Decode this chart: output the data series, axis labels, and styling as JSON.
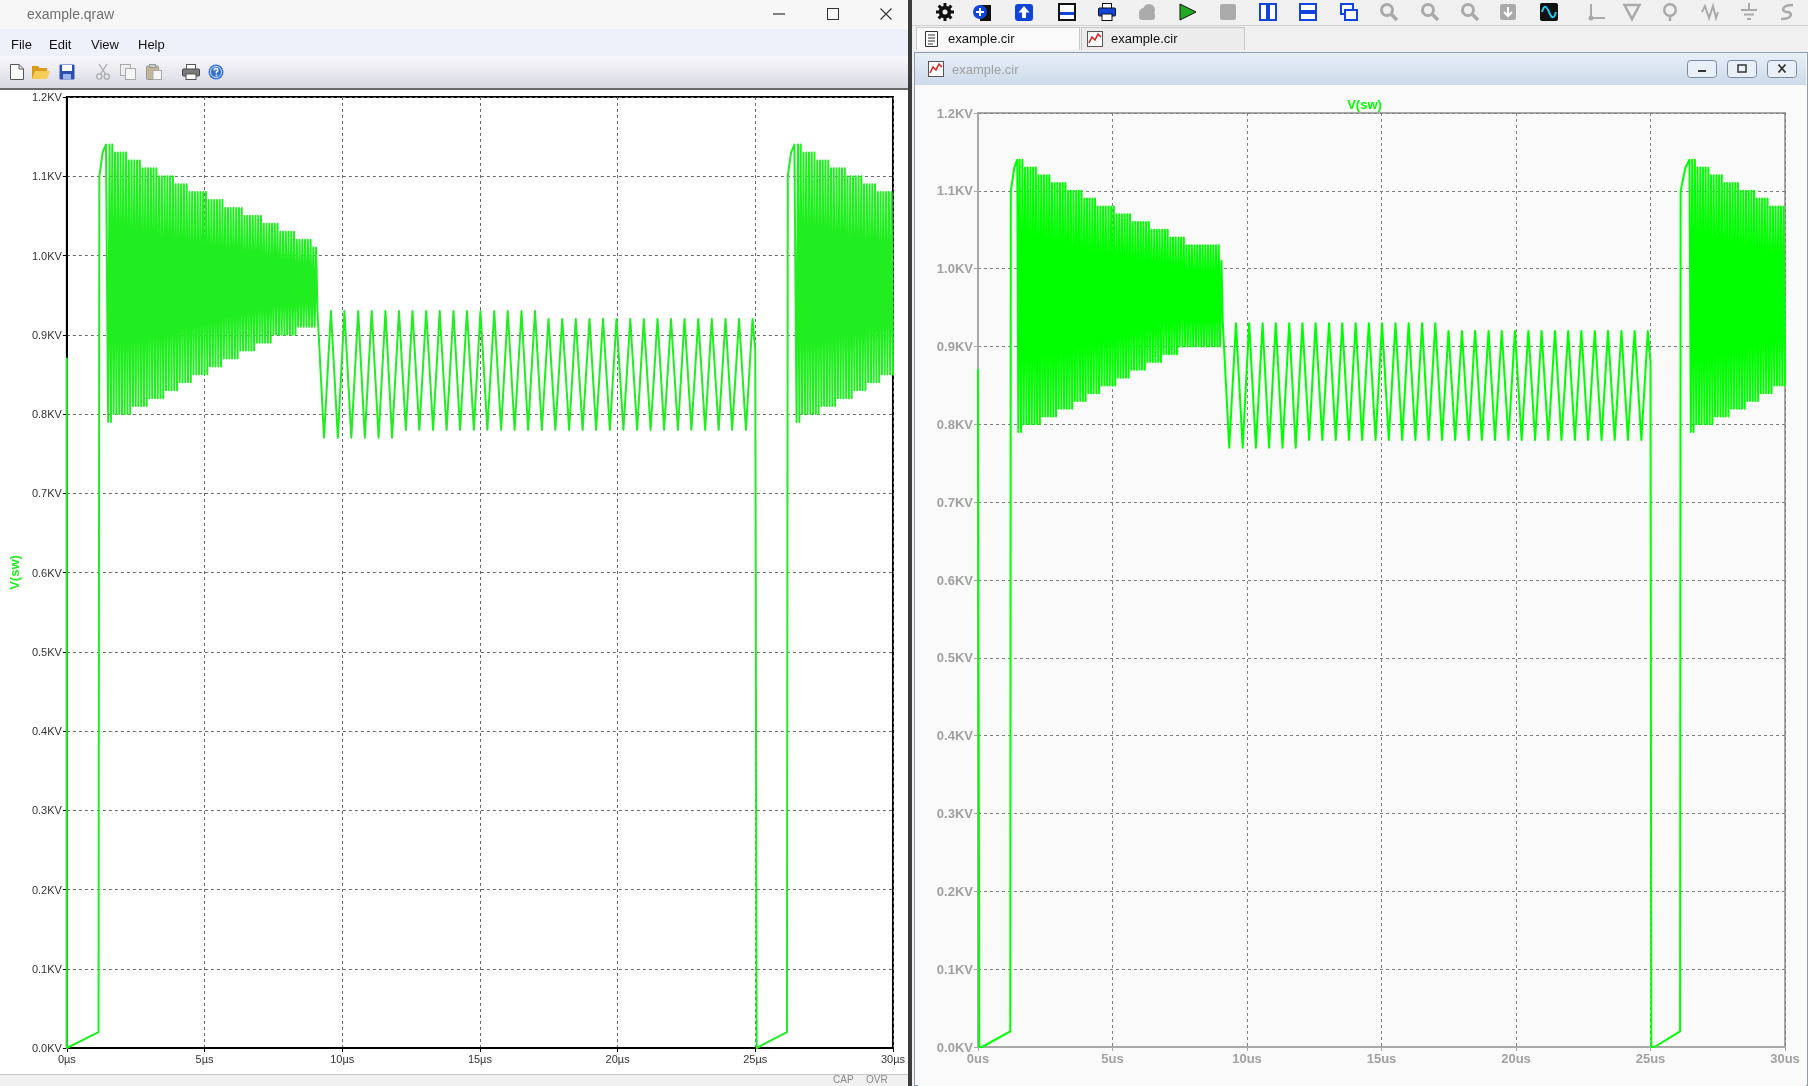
{
  "chart_data": [
    {
      "type": "line",
      "ylabel": "V(sw)",
      "annotations": [
        "example.qraw",
        "File",
        "Edit",
        "View",
        "Help",
        "CAP",
        "OVR"
      ],
      "x": [
        0,
        0,
        1.15,
        1.18,
        1.3,
        1.42,
        1.5,
        1.55,
        1.6,
        1.65,
        1.7,
        1.75,
        1.8,
        1.85,
        1.9,
        1.95,
        2,
        2.05,
        2.1,
        2.15,
        2.2,
        2.25,
        2.3,
        2.35,
        2.4,
        2.45,
        2.5,
        2.55,
        2.6,
        2.65,
        2.7,
        2.75,
        2.8,
        2.85,
        2.9,
        2.95,
        3,
        3.05,
        3.1,
        3.15,
        3.2,
        3.25,
        3.3,
        3.35,
        3.4,
        3.45,
        3.5,
        3.55,
        3.6,
        3.65,
        3.7,
        3.75,
        3.8,
        3.85,
        3.9,
        3.95,
        4,
        4.05,
        4.1,
        4.15,
        4.2,
        4.25,
        4.3,
        4.35,
        4.4,
        4.45,
        4.5,
        4.55,
        4.6,
        4.65,
        4.7,
        4.75,
        4.8,
        4.85,
        4.9,
        4.95,
        5,
        5.05,
        5.1,
        5.15,
        5.2,
        5.25,
        5.3,
        5.35,
        5.4,
        5.45,
        5.5,
        5.55,
        5.6,
        5.65,
        5.7,
        5.75,
        5.8,
        5.85,
        5.9,
        5.95,
        6,
        6.05,
        6.1,
        6.15,
        6.2,
        6.25,
        6.3,
        6.35,
        6.4,
        6.45,
        6.5,
        6.55,
        6.6,
        6.65,
        6.7,
        6.75,
        6.8,
        6.85,
        6.9,
        6.95,
        7,
        7.05,
        7.1,
        7.15,
        7.2,
        7.25,
        7.3,
        7.35,
        7.4,
        7.45,
        7.5,
        7.55,
        7.6,
        7.65,
        7.7,
        7.75,
        7.8,
        7.85,
        7.9,
        7.95,
        8,
        8.05,
        8.1,
        8.15,
        8.2,
        8.25,
        8.3,
        8.35,
        8.4,
        8.45,
        8.5,
        8.55,
        8.6,
        8.65,
        8.7,
        8.75,
        8.8,
        8.85,
        8.9,
        8.95,
        9,
        9.05,
        9.1,
        9.34,
        9.59,
        9.84,
        10.08,
        10.33,
        10.58,
        10.82,
        11.07,
        11.32,
        11.57,
        11.81,
        12.06,
        12.31,
        12.55,
        12.8,
        13.05,
        13.3,
        13.54,
        13.79,
        14.04,
        14.28,
        14.53,
        14.78,
        15.02,
        15.27,
        15.52,
        15.77,
        16.01,
        16.26,
        16.51,
        16.75,
        17,
        17.25,
        17.49,
        17.74,
        17.99,
        18.24,
        18.48,
        18.73,
        18.98,
        19.22,
        19.47,
        19.72,
        19.96,
        20.21,
        20.46,
        20.71,
        20.95,
        21.2,
        21.45,
        21.69,
        21.94,
        22.19,
        22.43,
        22.68,
        22.93,
        23.18,
        23.42,
        23.67,
        23.92,
        24.16,
        24.41,
        24.66,
        24.9,
        25,
        25.05,
        26.15,
        26.18,
        26.3,
        26.42,
        26.5,
        26.55,
        26.6,
        26.65,
        26.7,
        26.75,
        26.8,
        26.85,
        26.9,
        26.95,
        27,
        27.05,
        27.1,
        27.15,
        27.2,
        27.25,
        27.3,
        27.35,
        27.4,
        27.45,
        27.5,
        27.55,
        27.6,
        27.65,
        27.7,
        27.75,
        27.8,
        27.85,
        27.9,
        27.95,
        28,
        28.05,
        28.1,
        28.15,
        28.2,
        28.25,
        28.3,
        28.35,
        28.4,
        28.45,
        28.5,
        28.55,
        28.6,
        28.65,
        28.7,
        28.75,
        28.8,
        28.85,
        28.9,
        28.95,
        29,
        29.05,
        29.1,
        29.15,
        29.2,
        29.25,
        29.3,
        29.35,
        29.4,
        29.45,
        29.5,
        29.55,
        29.6,
        29.65,
        29.7,
        29.75,
        29.8,
        29.85,
        29.9,
        29.95,
        30
      ],
      "series": [
        {
          "color": "#20ee20",
          "values": [
            0.87,
            0,
            0.02,
            1.1,
            1.13,
            1.14,
            0.79,
            1.14,
            0.79,
            1.14,
            0.8,
            1.13,
            0.8,
            1.13,
            0.8,
            1.13,
            0.8,
            1.13,
            0.8,
            1.13,
            0.8,
            1.12,
            0.8,
            1.12,
            0.81,
            1.12,
            0.81,
            1.12,
            0.81,
            1.12,
            0.81,
            1.11,
            0.81,
            1.11,
            0.81,
            1.11,
            0.82,
            1.11,
            0.82,
            1.11,
            0.82,
            1.11,
            0.82,
            1.1,
            0.82,
            1.1,
            0.82,
            1.1,
            0.83,
            1.1,
            0.83,
            1.1,
            0.83,
            1.1,
            0.83,
            1.09,
            0.83,
            1.09,
            0.84,
            1.09,
            0.84,
            1.09,
            0.84,
            1.09,
            0.84,
            1.08,
            0.84,
            1.08,
            0.85,
            1.08,
            0.85,
            1.08,
            0.85,
            1.08,
            0.85,
            1.08,
            0.85,
            1.08,
            0.85,
            1.07,
            0.86,
            1.07,
            0.86,
            1.07,
            0.86,
            1.07,
            0.86,
            1.07,
            0.86,
            1.07,
            0.87,
            1.06,
            0.87,
            1.06,
            0.87,
            1.06,
            0.87,
            1.06,
            0.87,
            1.06,
            0.87,
            1.06,
            0.88,
            1.06,
            0.88,
            1.05,
            0.88,
            1.05,
            0.88,
            1.05,
            0.88,
            1.05,
            0.88,
            1.05,
            0.89,
            1.05,
            0.89,
            1.05,
            0.89,
            1.04,
            0.89,
            1.04,
            0.89,
            1.04,
            0.89,
            1.04,
            0.9,
            1.04,
            0.9,
            1.04,
            0.9,
            1.03,
            0.9,
            1.03,
            0.9,
            1.03,
            0.9,
            1.03,
            0.9,
            1.03,
            0.9,
            1.03,
            0.9,
            1.02,
            0.91,
            1.02,
            0.91,
            1.02,
            0.91,
            1.02,
            0.91,
            1.02,
            0.91,
            1.02,
            0.91,
            1.01,
            0.91,
            1.01,
            0.93,
            0.77,
            0.93,
            0.77,
            0.93,
            0.77,
            0.93,
            0.77,
            0.93,
            0.77,
            0.93,
            0.77,
            0.93,
            0.78,
            0.93,
            0.78,
            0.93,
            0.78,
            0.93,
            0.78,
            0.93,
            0.78,
            0.93,
            0.78,
            0.93,
            0.78,
            0.93,
            0.78,
            0.93,
            0.78,
            0.93,
            0.78,
            0.93,
            0.78,
            0.92,
            0.78,
            0.92,
            0.78,
            0.92,
            0.78,
            0.92,
            0.78,
            0.92,
            0.78,
            0.92,
            0.78,
            0.92,
            0.78,
            0.92,
            0.78,
            0.92,
            0.78,
            0.92,
            0.78,
            0.92,
            0.78,
            0.92,
            0.78,
            0.92,
            0.78,
            0.92,
            0.78,
            0.92,
            0.78,
            0.92,
            0.88,
            0,
            0.02,
            1.1,
            1.13,
            1.14,
            0.79,
            1.14,
            0.79,
            1.14,
            0.8,
            1.13,
            0.8,
            1.13,
            0.8,
            1.13,
            0.8,
            1.13,
            0.8,
            1.13,
            0.8,
            1.12,
            0.8,
            1.12,
            0.81,
            1.12,
            0.81,
            1.12,
            0.81,
            1.12,
            0.81,
            1.11,
            0.81,
            1.11,
            0.81,
            1.11,
            0.82,
            1.11,
            0.82,
            1.11,
            0.82,
            1.11,
            0.82,
            1.1,
            0.82,
            1.1,
            0.82,
            1.1,
            0.83,
            1.1,
            0.83,
            1.1,
            0.83,
            1.1,
            0.83,
            1.09,
            0.83,
            1.09,
            0.84,
            1.09,
            0.84,
            1.09,
            0.84,
            1.09,
            0.84,
            1.08,
            0.84,
            1.08,
            0.85,
            1.08,
            0.85,
            1.08,
            0.85,
            1.08,
            0.85,
            1.08,
            0.85
          ]
        }
      ],
      "xlim": [
        0,
        30
      ],
      "xticks": [
        {
          "value": 0,
          "label": "0µs"
        },
        {
          "value": 5,
          "label": "5µs"
        },
        {
          "value": 10,
          "label": "10µs"
        },
        {
          "value": 15,
          "label": "15µs"
        },
        {
          "value": 20,
          "label": "20µs"
        },
        {
          "value": 25,
          "label": "25µs"
        },
        {
          "value": 30,
          "label": "30µs"
        }
      ],
      "ylim": [
        0,
        1.2
      ],
      "yticks": [
        {
          "value": 0,
          "label": "0.0KV"
        },
        {
          "value": 0.1,
          "label": "0.1KV"
        },
        {
          "value": 0.2,
          "label": "0.2KV"
        },
        {
          "value": 0.3,
          "label": "0.3KV"
        },
        {
          "value": 0.4,
          "label": "0.4KV"
        },
        {
          "value": 0.5,
          "label": "0.5KV"
        },
        {
          "value": 0.6,
          "label": "0.6KV"
        },
        {
          "value": 0.7,
          "label": "0.7KV"
        },
        {
          "value": 0.8,
          "label": "0.8KV"
        },
        {
          "value": 0.9,
          "label": "0.9KV"
        },
        {
          "value": 1,
          "label": "1.0KV"
        },
        {
          "value": 1.1,
          "label": "1.1KV"
        },
        {
          "value": 1.2,
          "label": "1.2KV"
        }
      ],
      "grid": true,
      "marker": "none"
    },
    {
      "type": "line",
      "annotations": [
        "example.cir",
        "example.cir",
        "example.cir"
      ],
      "x": [
        0,
        0.05,
        0.15,
        1.2,
        1.22,
        1.35,
        1.46,
        1.5,
        1.55,
        1.6,
        1.65,
        1.7,
        1.75,
        1.8,
        1.85,
        1.9,
        1.95,
        2,
        2.05,
        2.1,
        2.15,
        2.2,
        2.25,
        2.3,
        2.35,
        2.4,
        2.45,
        2.5,
        2.55,
        2.6,
        2.65,
        2.7,
        2.75,
        2.8,
        2.85,
        2.9,
        2.95,
        3,
        3.05,
        3.1,
        3.15,
        3.2,
        3.25,
        3.3,
        3.35,
        3.4,
        3.45,
        3.5,
        3.55,
        3.6,
        3.65,
        3.7,
        3.75,
        3.8,
        3.85,
        3.9,
        3.95,
        4,
        4.05,
        4.1,
        4.15,
        4.2,
        4.25,
        4.3,
        4.35,
        4.4,
        4.45,
        4.5,
        4.55,
        4.6,
        4.65,
        4.7,
        4.75,
        4.8,
        4.85,
        4.9,
        4.95,
        5,
        5.05,
        5.1,
        5.15,
        5.2,
        5.25,
        5.3,
        5.35,
        5.4,
        5.45,
        5.5,
        5.55,
        5.6,
        5.65,
        5.7,
        5.75,
        5.8,
        5.85,
        5.9,
        5.95,
        6,
        6.05,
        6.1,
        6.15,
        6.2,
        6.25,
        6.3,
        6.35,
        6.4,
        6.45,
        6.5,
        6.55,
        6.6,
        6.65,
        6.7,
        6.75,
        6.8,
        6.85,
        6.9,
        6.95,
        7,
        7.05,
        7.1,
        7.15,
        7.2,
        7.25,
        7.3,
        7.35,
        7.4,
        7.45,
        7.5,
        7.55,
        7.6,
        7.65,
        7.7,
        7.75,
        7.8,
        7.85,
        7.9,
        7.95,
        8,
        8.05,
        8.1,
        8.15,
        8.2,
        8.25,
        8.3,
        8.35,
        8.4,
        8.45,
        8.5,
        8.55,
        8.6,
        8.65,
        8.7,
        8.75,
        8.8,
        8.85,
        8.9,
        8.95,
        9,
        9.05,
        9.1,
        9.34,
        9.59,
        9.84,
        10.08,
        10.33,
        10.58,
        10.82,
        11.07,
        11.32,
        11.57,
        11.81,
        12.06,
        12.31,
        12.55,
        12.8,
        13.05,
        13.3,
        13.54,
        13.79,
        14.04,
        14.28,
        14.53,
        14.78,
        15.02,
        15.27,
        15.52,
        15.77,
        16.01,
        16.26,
        16.51,
        16.75,
        17,
        17.25,
        17.49,
        17.74,
        17.99,
        18.24,
        18.48,
        18.73,
        18.98,
        19.22,
        19.47,
        19.72,
        19.96,
        20.21,
        20.46,
        20.71,
        20.95,
        21.2,
        21.45,
        21.69,
        21.94,
        22.19,
        22.43,
        22.68,
        22.93,
        23.18,
        23.42,
        23.67,
        23.92,
        24.16,
        24.41,
        24.66,
        24.9,
        25,
        25.03,
        25.15,
        26.1,
        26.12,
        26.3,
        26.45,
        26.5,
        26.55,
        26.6,
        26.65,
        26.7,
        26.75,
        26.8,
        26.85,
        26.9,
        26.95,
        27,
        27.05,
        27.1,
        27.15,
        27.2,
        27.25,
        27.3,
        27.35,
        27.4,
        27.45,
        27.5,
        27.55,
        27.6,
        27.65,
        27.7,
        27.75,
        27.8,
        27.85,
        27.9,
        27.95,
        28,
        28.05,
        28.1,
        28.15,
        28.2,
        28.25,
        28.3,
        28.35,
        28.4,
        28.45,
        28.5,
        28.55,
        28.6,
        28.65,
        28.7,
        28.75,
        28.8,
        28.85,
        28.9,
        28.95,
        29,
        29.05,
        29.1,
        29.15,
        29.2,
        29.25,
        29.3,
        29.35,
        29.4,
        29.45,
        29.5,
        29.55,
        29.6,
        29.65,
        29.7,
        29.75,
        29.8,
        29.85,
        29.9,
        29.95,
        30
      ],
      "series": [
        {
          "name": "V(sw)",
          "color": "#00ff00",
          "values": [
            0.87,
            0,
            0,
            0.02,
            1.1,
            1.13,
            1.14,
            0.79,
            1.14,
            0.79,
            1.14,
            0.8,
            1.13,
            0.8,
            1.13,
            0.8,
            1.13,
            0.8,
            1.13,
            0.8,
            1.13,
            0.8,
            1.12,
            0.8,
            1.12,
            0.81,
            1.12,
            0.81,
            1.12,
            0.81,
            1.12,
            0.81,
            1.11,
            0.81,
            1.11,
            0.81,
            1.11,
            0.82,
            1.11,
            0.82,
            1.11,
            0.82,
            1.11,
            0.82,
            1.1,
            0.82,
            1.1,
            0.82,
            1.1,
            0.83,
            1.1,
            0.83,
            1.1,
            0.83,
            1.1,
            0.83,
            1.09,
            0.83,
            1.09,
            0.84,
            1.09,
            0.84,
            1.09,
            0.84,
            1.09,
            0.84,
            1.08,
            0.84,
            1.08,
            0.85,
            1.08,
            0.85,
            1.08,
            0.85,
            1.08,
            0.85,
            1.08,
            0.85,
            1.08,
            0.85,
            1.07,
            0.86,
            1.07,
            0.86,
            1.07,
            0.86,
            1.07,
            0.86,
            1.07,
            0.86,
            1.07,
            0.87,
            1.06,
            0.87,
            1.06,
            0.87,
            1.06,
            0.87,
            1.06,
            0.87,
            1.06,
            0.87,
            1.06,
            0.88,
            1.06,
            0.88,
            1.05,
            0.88,
            1.05,
            0.88,
            1.05,
            0.88,
            1.05,
            0.88,
            1.05,
            0.89,
            1.05,
            0.89,
            1.05,
            0.89,
            1.04,
            0.89,
            1.04,
            0.89,
            1.04,
            0.89,
            1.04,
            0.9,
            1.04,
            0.9,
            1.04,
            0.9,
            1.03,
            0.9,
            1.03,
            0.9,
            1.03,
            0.9,
            1.03,
            0.9,
            1.03,
            0.9,
            1.03,
            0.9,
            1.03,
            0.9,
            1.03,
            0.9,
            1.03,
            0.9,
            1.03,
            0.9,
            1.03,
            0.9,
            1.03,
            0.9,
            1.03,
            0.9,
            1.01,
            0.93,
            0.77,
            0.93,
            0.77,
            0.93,
            0.77,
            0.93,
            0.77,
            0.93,
            0.77,
            0.93,
            0.77,
            0.93,
            0.78,
            0.93,
            0.78,
            0.93,
            0.78,
            0.93,
            0.78,
            0.93,
            0.78,
            0.93,
            0.78,
            0.93,
            0.78,
            0.93,
            0.78,
            0.93,
            0.78,
            0.93,
            0.78,
            0.93,
            0.78,
            0.92,
            0.78,
            0.92,
            0.78,
            0.92,
            0.78,
            0.92,
            0.78,
            0.92,
            0.78,
            0.92,
            0.78,
            0.92,
            0.78,
            0.92,
            0.78,
            0.92,
            0.78,
            0.92,
            0.78,
            0.92,
            0.78,
            0.92,
            0.78,
            0.92,
            0.78,
            0.92,
            0.78,
            0.92,
            0.78,
            0.92,
            0.88,
            0,
            0,
            0.02,
            1.1,
            1.13,
            1.14,
            0.79,
            1.14,
            0.79,
            1.14,
            0.8,
            1.13,
            0.8,
            1.13,
            0.8,
            1.13,
            0.8,
            1.13,
            0.8,
            1.13,
            0.8,
            1.12,
            0.8,
            1.12,
            0.81,
            1.12,
            0.81,
            1.12,
            0.81,
            1.12,
            0.81,
            1.11,
            0.81,
            1.11,
            0.81,
            1.11,
            0.82,
            1.11,
            0.82,
            1.11,
            0.82,
            1.11,
            0.82,
            1.1,
            0.82,
            1.1,
            0.82,
            1.1,
            0.83,
            1.1,
            0.83,
            1.1,
            0.83,
            1.1,
            0.83,
            1.09,
            0.83,
            1.09,
            0.84,
            1.09,
            0.84,
            1.09,
            0.84,
            1.09,
            0.84,
            1.08,
            0.84,
            1.08,
            0.85,
            1.08,
            0.85,
            1.08,
            0.85,
            1.08,
            0.85,
            1.08,
            0.85
          ]
        }
      ],
      "xlim": [
        0,
        30
      ],
      "xticks": [
        {
          "value": 0,
          "label": "0us"
        },
        {
          "value": 5,
          "label": "5us"
        },
        {
          "value": 10,
          "label": "10us"
        },
        {
          "value": 15,
          "label": "15us"
        },
        {
          "value": 20,
          "label": "20us"
        },
        {
          "value": 25,
          "label": "25us"
        },
        {
          "value": 30,
          "label": "30us"
        }
      ],
      "ylim": [
        0,
        1.2
      ],
      "yticks": [
        {
          "value": 0,
          "label": "0.0KV"
        },
        {
          "value": 0.1,
          "label": "0.1KV"
        },
        {
          "value": 0.2,
          "label": "0.2KV"
        },
        {
          "value": 0.3,
          "label": "0.3KV"
        },
        {
          "value": 0.4,
          "label": "0.4KV"
        },
        {
          "value": 0.5,
          "label": "0.5KV"
        },
        {
          "value": 0.6,
          "label": "0.6KV"
        },
        {
          "value": 0.7,
          "label": "0.7KV"
        },
        {
          "value": 0.8,
          "label": "0.8KV"
        },
        {
          "value": 0.9,
          "label": "0.9KV"
        },
        {
          "value": 1,
          "label": "1.0KV"
        },
        {
          "value": 1.1,
          "label": "1.1KV"
        },
        {
          "value": 1.2,
          "label": "1.2KV"
        }
      ],
      "grid": true,
      "legend": "top",
      "marker": "none"
    }
  ]
}
